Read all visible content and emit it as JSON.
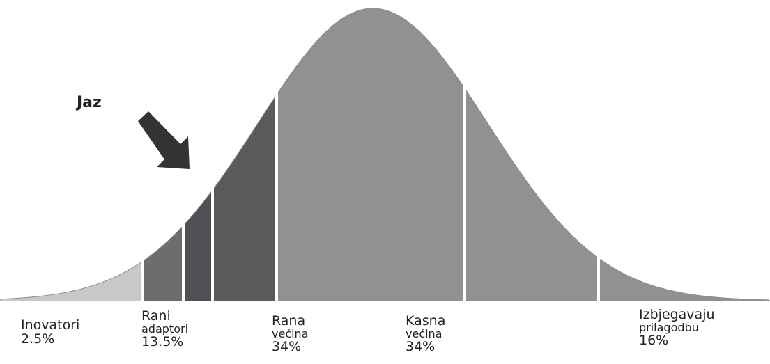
{
  "diagram": {
    "gap_label": "Jaz",
    "curve_color": "#919191",
    "segments": [
      {
        "line1": "Inovatori",
        "line2": "",
        "percent": "2.5%",
        "color": "#c8c8c8"
      },
      {
        "line1": "Rani",
        "line2": "adaptori",
        "percent": "13.5%",
        "color": "#6d6d6d"
      },
      {
        "line1": "Rana",
        "line2": "većina",
        "percent": "34%",
        "color": "#5a5a5a"
      },
      {
        "line1": "Kasna",
        "line2": "većina",
        "percent": "34%",
        "color": "#919191"
      },
      {
        "line1": "Izbjegavaju",
        "line2": "prilagodbu",
        "percent": "16%",
        "color": "#919191"
      }
    ]
  }
}
